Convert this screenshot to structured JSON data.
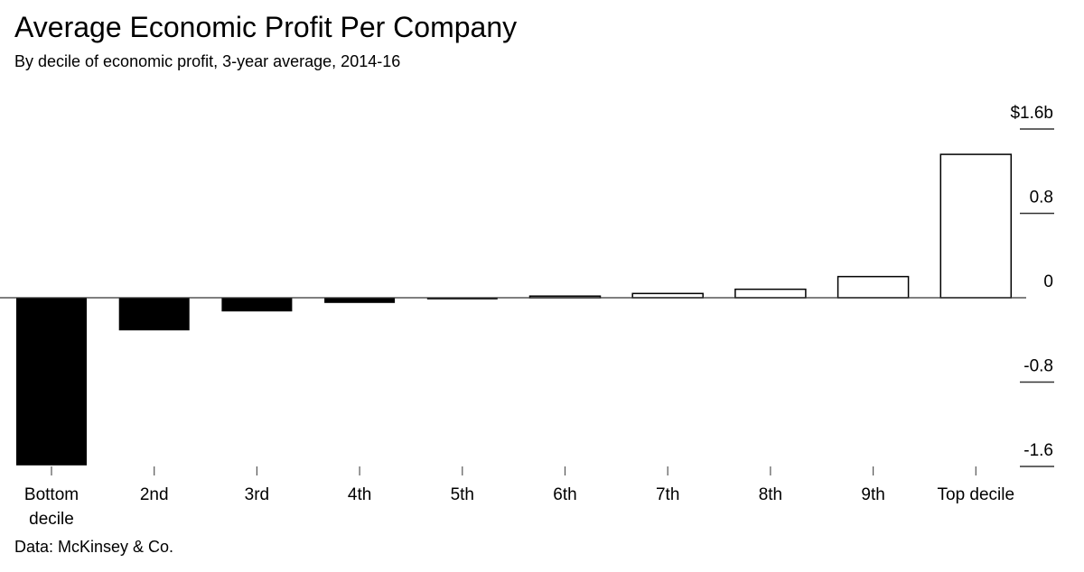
{
  "title": "Average Economic Profit Per Company",
  "subtitle": "By decile of economic profit, 3-year average, 2014-16",
  "source": "Data: McKinsey & Co.",
  "colors": {
    "negative": "#000000",
    "positive": "#ffffff",
    "outline": "#000000"
  },
  "chart_data": {
    "type": "bar",
    "categories": [
      [
        "Bottom",
        "decile"
      ],
      [
        "2nd"
      ],
      [
        "3rd"
      ],
      [
        "4th"
      ],
      [
        "5th"
      ],
      [
        "6th"
      ],
      [
        "7th"
      ],
      [
        "8th"
      ],
      [
        "9th"
      ],
      [
        "Top decile"
      ]
    ],
    "values": [
      -1.59,
      -0.31,
      -0.13,
      -0.05,
      -0.015,
      0.015,
      0.04,
      0.08,
      0.2,
      1.36
    ],
    "ylim": [
      -1.6,
      1.6
    ],
    "y_ticks": [
      1.6,
      0.8,
      0,
      -0.8,
      -1.6
    ],
    "y_tick_labels": [
      "$1.6b",
      "0.8",
      "0",
      "-0.8",
      "-1.6"
    ],
    "y_axis_position": "right",
    "grid": false,
    "legend": "none",
    "negative_fill": "black",
    "positive_fill": "white with black outline"
  }
}
